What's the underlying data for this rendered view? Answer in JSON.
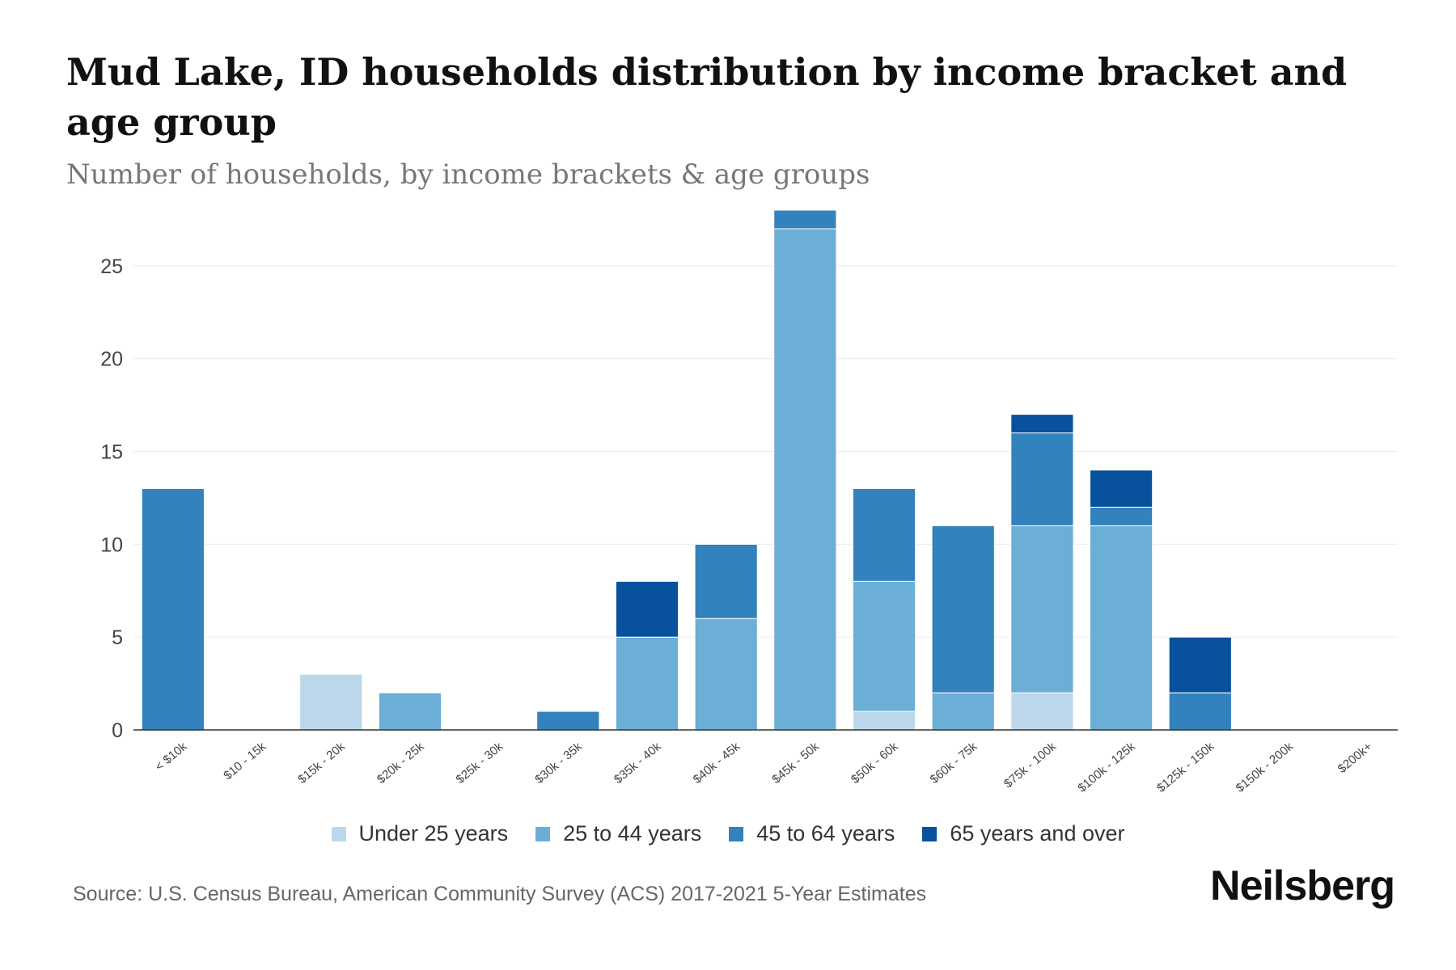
{
  "header": {
    "title": "Mud Lake, ID households distribution by income bracket and age group",
    "subtitle": "Number of households, by income brackets & age groups"
  },
  "footer": {
    "source": "Source: U.S. Census Bureau, American Community Survey (ACS) 2017-2021 5-Year Estimates",
    "brand": "Neilsberg"
  },
  "chart_data": {
    "type": "bar",
    "stacked": true,
    "title": "Mud Lake, ID households distribution by income bracket and age group",
    "subtitle": "Number of households, by income brackets & age groups",
    "xlabel": "",
    "ylabel": "",
    "ylim": [
      0,
      28
    ],
    "yticks": [
      0,
      5,
      10,
      15,
      20,
      25
    ],
    "grid": true,
    "legend_position": "bottom",
    "categories": [
      "< $10k",
      "$10 - 15k",
      "$15k - 20k",
      "$20k - 25k",
      "$25k - 30k",
      "$30k - 35k",
      "$35k - 40k",
      "$40k - 45k",
      "$45k - 50k",
      "$50k - 60k",
      "$60k - 75k",
      "$75k - 100k",
      "$100k - 125k",
      "$125k - 150k",
      "$150k - 200k",
      "$200k+"
    ],
    "series": [
      {
        "name": "Under 25 years",
        "color": "#bcd7e9",
        "values": [
          0,
          0,
          3,
          0,
          0,
          0,
          0,
          0,
          0,
          1,
          0,
          2,
          0,
          0,
          0,
          0
        ]
      },
      {
        "name": "25 to 44 years",
        "color": "#6baed6",
        "values": [
          0,
          0,
          0,
          2,
          0,
          0,
          5,
          6,
          27,
          7,
          2,
          9,
          11,
          0,
          0,
          0
        ]
      },
      {
        "name": "45 to 64 years",
        "color": "#3182bd",
        "values": [
          13,
          0,
          0,
          0,
          0,
          1,
          0,
          4,
          1,
          5,
          9,
          5,
          1,
          2,
          0,
          0
        ]
      },
      {
        "name": "65 years and over",
        "color": "#08519c",
        "values": [
          0,
          0,
          0,
          0,
          0,
          0,
          3,
          0,
          0,
          0,
          0,
          1,
          2,
          3,
          0,
          0
        ]
      }
    ]
  }
}
